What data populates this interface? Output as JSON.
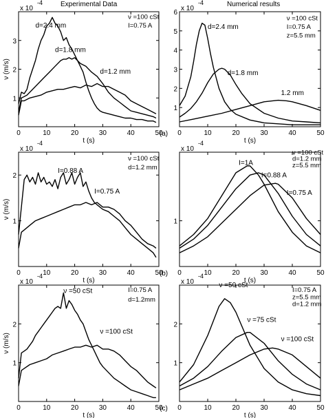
{
  "headers": {
    "left": "Experimental Data",
    "right": "Numerical results"
  },
  "chart_data": [
    {
      "panel": "a-left",
      "type": "line",
      "ylabel": "ν (m/s)",
      "xlabel": "t (s)",
      "scale_label": "x 10",
      "scale_exp": "-4",
      "xlim": [
        0,
        50
      ],
      "ylim": [
        0,
        4
      ],
      "xticks": [
        0,
        10,
        20,
        30,
        40,
        50
      ],
      "yticks": [
        1,
        2,
        3
      ],
      "annotations": [
        {
          "text": "ν =100 cSt",
          "x": 39,
          "y": 3.75
        },
        {
          "text": "I=0.75 A",
          "x": 39,
          "y": 3.45
        }
      ],
      "series": [
        {
          "label": "d=2.4 mm",
          "label_at": [
            6,
            3.45
          ],
          "x": [
            0,
            1,
            2,
            3,
            4,
            5,
            6,
            7,
            8,
            9,
            10,
            11,
            12,
            13,
            14,
            15,
            16,
            17,
            18,
            19,
            20,
            21,
            22,
            23,
            24,
            25,
            26,
            27,
            28,
            29,
            30,
            32,
            34,
            36,
            38,
            40,
            42,
            44,
            46,
            48,
            49
          ],
          "y": [
            0.8,
            1.2,
            1.15,
            1.3,
            1.7,
            2.0,
            2.3,
            2.7,
            3.0,
            3.2,
            3.5,
            3.6,
            3.8,
            3.6,
            3.5,
            3.3,
            3.0,
            3.1,
            2.85,
            2.7,
            2.5,
            2.3,
            2.1,
            1.9,
            1.55,
            1.25,
            1.0,
            0.8,
            0.65,
            0.55,
            0.5,
            0.45,
            0.4,
            0.35,
            0.3,
            0.3,
            0.25,
            0.25,
            0.2,
            0.2,
            0.15
          ]
        },
        {
          "label": "d=1.8 mm",
          "label_at": [
            13,
            2.6
          ],
          "x": [
            0,
            1,
            2,
            3,
            5,
            7,
            9,
            11,
            13,
            15,
            16,
            17,
            18,
            19,
            20,
            21,
            22,
            24,
            26,
            28,
            30,
            32,
            34,
            36,
            38,
            40,
            42,
            44,
            46,
            48,
            49
          ],
          "y": [
            0.5,
            1.0,
            1.05,
            1.1,
            1.3,
            1.5,
            1.7,
            1.9,
            2.1,
            2.3,
            2.35,
            2.35,
            2.4,
            2.35,
            2.4,
            2.3,
            2.2,
            2.1,
            1.9,
            1.75,
            1.5,
            1.2,
            1.0,
            0.85,
            0.7,
            0.55,
            0.5,
            0.45,
            0.4,
            0.35,
            0.3
          ]
        },
        {
          "label": "d=1.2 mm",
          "label_at": [
            29,
            1.85
          ],
          "x": [
            0,
            1,
            2,
            4,
            6,
            8,
            10,
            12,
            14,
            16,
            18,
            20,
            22,
            24,
            26,
            28,
            30,
            32,
            34,
            36,
            38,
            40,
            42,
            44,
            46,
            48,
            49
          ],
          "y": [
            0.4,
            0.9,
            0.9,
            1.0,
            1.05,
            1.1,
            1.2,
            1.25,
            1.3,
            1.3,
            1.35,
            1.4,
            1.35,
            1.45,
            1.4,
            1.5,
            1.4,
            1.4,
            1.3,
            1.2,
            1.1,
            0.9,
            0.8,
            0.7,
            0.6,
            0.5,
            0.45
          ]
        }
      ]
    },
    {
      "panel": "a-right",
      "type": "line",
      "xlabel": "t (s)",
      "scale_label": "x 10",
      "scale_exp": "-4",
      "xlim": [
        0,
        50
      ],
      "ylim": [
        0,
        6
      ],
      "xticks": [
        0,
        10,
        20,
        30,
        40,
        50
      ],
      "yticks": [
        1,
        2,
        3,
        4,
        5,
        6
      ],
      "annotations": [
        {
          "text": "ν =100 cSt",
          "x": 38,
          "y": 5.55
        },
        {
          "text": "I=0.75 A",
          "x": 38,
          "y": 5.1
        },
        {
          "text": "z=5.5 mm",
          "x": 38,
          "y": 4.65
        }
      ],
      "series": [
        {
          "label": "d=2.4 mm",
          "label_at": [
            10,
            5.1
          ],
          "x": [
            0,
            2,
            4,
            5,
            6,
            7,
            8,
            9,
            10,
            11,
            12,
            14,
            16,
            18,
            20,
            25,
            30,
            35,
            40,
            45,
            50
          ],
          "y": [
            1.1,
            1.6,
            2.6,
            3.4,
            4.3,
            5.0,
            5.4,
            5.3,
            4.6,
            3.8,
            3.1,
            2.0,
            1.3,
            0.9,
            0.65,
            0.35,
            0.2,
            0.15,
            0.1,
            0.1,
            0.1
          ]
        },
        {
          "label": "d=1.8 mm",
          "label_at": [
            17,
            2.7
          ],
          "x": [
            0,
            2,
            4,
            6,
            8,
            10,
            12,
            14,
            15,
            16,
            18,
            20,
            22,
            25,
            30,
            35,
            40,
            45,
            50
          ],
          "y": [
            0.5,
            0.7,
            0.95,
            1.3,
            1.75,
            2.3,
            2.75,
            3.0,
            3.05,
            3.0,
            2.7,
            2.2,
            1.75,
            1.2,
            0.7,
            0.45,
            0.3,
            0.25,
            0.2
          ]
        },
        {
          "label": "1.2 mm",
          "label_at": [
            36,
            1.65
          ],
          "x": [
            0,
            5,
            10,
            15,
            20,
            25,
            30,
            35,
            38,
            40,
            45,
            50
          ],
          "y": [
            0.25,
            0.4,
            0.55,
            0.7,
            0.9,
            1.1,
            1.3,
            1.38,
            1.35,
            1.3,
            1.1,
            0.85
          ]
        }
      ],
      "footnote": "(a)"
    },
    {
      "panel": "b-left",
      "type": "line",
      "ylabel": "ν (m/s)",
      "xlabel": "t (s)",
      "scale_label": "x 10",
      "scale_exp": "-4",
      "xlim": [
        0,
        50
      ],
      "ylim": [
        0,
        2.5
      ],
      "xticks": [
        0,
        10,
        20,
        30,
        40,
        50
      ],
      "yticks": [
        1,
        2
      ],
      "annotations": [
        {
          "text": "ν =100 cSt",
          "x": 39,
          "y": 2.32
        },
        {
          "text": "d=1.2 mm",
          "x": 39,
          "y": 2.12
        }
      ],
      "series": [
        {
          "label": "I=0.88 A",
          "label_at": [
            14,
            2.05
          ],
          "x": [
            0,
            1,
            2,
            3,
            4,
            5,
            6,
            7,
            8,
            9,
            10,
            11,
            12,
            13,
            14,
            15,
            16,
            17,
            18,
            19,
            20,
            21,
            22,
            23,
            24,
            25,
            26,
            27,
            28,
            29,
            30,
            32,
            34,
            36,
            38,
            40,
            42,
            44,
            46,
            48,
            49
          ],
          "y": [
            0.7,
            1.3,
            1.9,
            2.0,
            1.85,
            1.95,
            1.8,
            2.05,
            1.85,
            1.95,
            1.8,
            1.85,
            1.75,
            1.9,
            1.7,
            1.95,
            2.05,
            1.8,
            1.9,
            2.05,
            1.8,
            1.95,
            2.05,
            1.75,
            1.85,
            1.65,
            1.5,
            1.4,
            1.35,
            1.3,
            1.25,
            1.2,
            1.1,
            1.0,
            0.85,
            0.7,
            0.6,
            0.5,
            0.4,
            0.3,
            0.2
          ]
        },
        {
          "label": "I=0.75 A",
          "label_at": [
            27,
            1.6
          ],
          "x": [
            0,
            1,
            2,
            4,
            6,
            8,
            10,
            12,
            14,
            16,
            18,
            20,
            22,
            24,
            26,
            28,
            30,
            32,
            34,
            36,
            38,
            40,
            42,
            44,
            46,
            48,
            49
          ],
          "y": [
            0.4,
            0.75,
            0.8,
            0.9,
            1.0,
            1.05,
            1.1,
            1.15,
            1.2,
            1.25,
            1.3,
            1.35,
            1.35,
            1.4,
            1.35,
            1.4,
            1.3,
            1.3,
            1.25,
            1.15,
            1.0,
            0.9,
            0.75,
            0.6,
            0.5,
            0.45,
            0.4
          ]
        }
      ]
    },
    {
      "panel": "b-right",
      "type": "line",
      "xlabel": "t (s)",
      "scale_label": "x 10",
      "scale_exp": "-4",
      "xlim": [
        0,
        50
      ],
      "ylim": [
        0,
        2.5
      ],
      "xticks": [
        0,
        10,
        20,
        30,
        40,
        50
      ],
      "yticks": [
        1
      ],
      "annotations": [
        {
          "text": "ν =100 cSt",
          "x": 40,
          "y": 2.45
        },
        {
          "text": "d=1.2 mm",
          "x": 40,
          "y": 2.31
        },
        {
          "text": "z=5.5 mm",
          "x": 40,
          "y": 2.17
        }
      ],
      "series": [
        {
          "label": "I=1A",
          "label_at": [
            21,
            2.22
          ],
          "x": [
            0,
            5,
            10,
            15,
            20,
            24,
            25,
            28,
            30,
            35,
            40,
            45,
            50
          ],
          "y": [
            0.45,
            0.7,
            1.05,
            1.55,
            2.05,
            2.2,
            2.2,
            2.0,
            1.8,
            1.2,
            0.75,
            0.45,
            0.3
          ]
        },
        {
          "label": "I=0.88 A",
          "label_at": [
            29,
            1.95
          ],
          "x": [
            0,
            5,
            10,
            15,
            20,
            25,
            28,
            30,
            35,
            40,
            45,
            50
          ],
          "y": [
            0.4,
            0.6,
            0.9,
            1.3,
            1.7,
            2.0,
            2.05,
            2.0,
            1.6,
            1.1,
            0.7,
            0.45
          ]
        },
        {
          "label": "I=0.75 A",
          "label_at": [
            38,
            1.57
          ],
          "x": [
            0,
            5,
            10,
            15,
            20,
            25,
            30,
            34,
            35,
            40,
            45,
            50
          ],
          "y": [
            0.3,
            0.45,
            0.65,
            0.95,
            1.25,
            1.55,
            1.78,
            1.82,
            1.8,
            1.5,
            1.05,
            0.7
          ]
        }
      ],
      "footnote": "(b)"
    },
    {
      "panel": "c-left",
      "type": "line",
      "ylabel": "ν (m/s)",
      "xlabel": "t (s)",
      "scale_label": "x 10",
      "scale_exp": "-4",
      "xlim": [
        0,
        50
      ],
      "ylim": [
        0,
        3
      ],
      "xticks": [
        0,
        10,
        20,
        30,
        40,
        50
      ],
      "yticks": [
        1,
        2
      ],
      "annotations": [
        {
          "text": "I=0.75 A",
          "x": 39,
          "y": 2.82
        },
        {
          "text": "d=1.2mm",
          "x": 39,
          "y": 2.57
        }
      ],
      "series": [
        {
          "label": "ν =50 cSt",
          "label_at": [
            16,
            2.8
          ],
          "x": [
            0,
            1,
            2,
            3,
            4,
            5,
            6,
            7,
            8,
            9,
            10,
            11,
            12,
            13,
            14,
            15,
            16,
            17,
            18,
            19,
            20,
            21,
            22,
            23,
            24,
            25,
            26,
            27,
            28,
            29,
            30,
            32,
            34,
            36,
            38,
            40,
            42,
            44,
            46,
            48,
            49
          ],
          "y": [
            0.6,
            1.25,
            1.3,
            1.35,
            1.45,
            1.55,
            1.7,
            1.8,
            1.9,
            2.0,
            2.1,
            2.2,
            2.3,
            2.4,
            2.45,
            2.4,
            2.8,
            2.4,
            2.6,
            2.5,
            2.35,
            2.25,
            2.1,
            2.0,
            1.8,
            1.6,
            1.45,
            1.3,
            1.15,
            1.0,
            0.9,
            0.75,
            0.6,
            0.5,
            0.4,
            0.3,
            0.25,
            0.2,
            0.15,
            0.1,
            0.1
          ]
        },
        {
          "label": "ν =100 cSt",
          "label_at": [
            29,
            1.75
          ],
          "x": [
            0,
            1,
            2,
            4,
            6,
            8,
            10,
            12,
            14,
            16,
            18,
            20,
            22,
            24,
            26,
            28,
            30,
            32,
            34,
            36,
            38,
            40,
            42,
            44,
            46,
            48,
            49
          ],
          "y": [
            0.4,
            0.8,
            0.85,
            0.95,
            1.0,
            1.05,
            1.1,
            1.2,
            1.25,
            1.3,
            1.35,
            1.4,
            1.4,
            1.45,
            1.4,
            1.45,
            1.35,
            1.35,
            1.3,
            1.2,
            1.05,
            0.9,
            0.8,
            0.65,
            0.5,
            0.4,
            0.35
          ]
        }
      ]
    },
    {
      "panel": "c-right",
      "type": "line",
      "xlabel": "t (s)",
      "scale_label": "x 10",
      "scale_exp": "-4",
      "xlim": [
        0,
        50
      ],
      "ylim": [
        0,
        3
      ],
      "xticks": [
        0,
        10,
        20,
        30,
        40,
        50
      ],
      "yticks": [
        1,
        2
      ],
      "annotations": [
        {
          "text": "I=0.75 A",
          "x": 40,
          "y": 2.82
        },
        {
          "text": "z=5.5 mm",
          "x": 40,
          "y": 2.64
        },
        {
          "text": "d=1.2 mm",
          "x": 40,
          "y": 2.46
        }
      ],
      "series": [
        {
          "label": "ν =50 cSt",
          "label_at": [
            14,
            2.95
          ],
          "x": [
            0,
            5,
            10,
            14,
            16,
            18,
            20,
            25,
            30,
            35,
            40,
            45,
            50
          ],
          "y": [
            0.5,
            0.95,
            1.7,
            2.45,
            2.65,
            2.55,
            2.3,
            1.45,
            0.85,
            0.5,
            0.3,
            0.2,
            0.15
          ]
        },
        {
          "label": "ν =75 cSt",
          "label_at": [
            24,
            2.05
          ],
          "x": [
            0,
            5,
            10,
            15,
            20,
            24,
            25,
            30,
            35,
            40,
            45,
            50
          ],
          "y": [
            0.4,
            0.6,
            0.9,
            1.3,
            1.65,
            1.78,
            1.78,
            1.5,
            1.05,
            0.7,
            0.45,
            0.3
          ]
        },
        {
          "label": "ν =100 cSt",
          "label_at": [
            36,
            1.55
          ],
          "x": [
            0,
            5,
            10,
            15,
            20,
            25,
            30,
            33,
            35,
            40,
            45,
            50
          ],
          "y": [
            0.3,
            0.45,
            0.6,
            0.8,
            1.0,
            1.2,
            1.35,
            1.38,
            1.35,
            1.2,
            0.9,
            0.6
          ]
        }
      ],
      "footnote": "(c)"
    }
  ]
}
